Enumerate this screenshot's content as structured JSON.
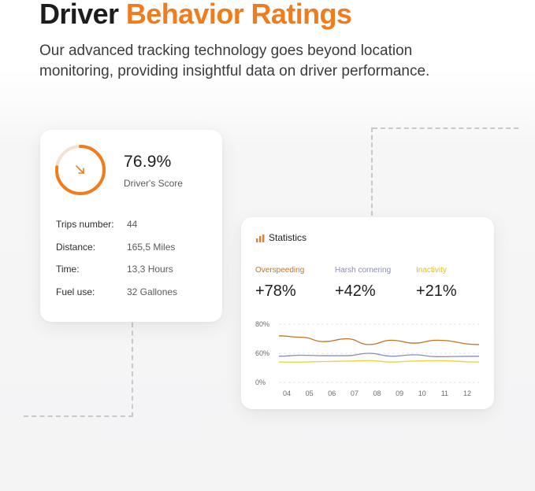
{
  "heading": {
    "part1": "Driver",
    "part2": "Behavior Ratings"
  },
  "subtitle": "Our advanced tracking technology goes beyond location monitoring, providing insightful data on driver performance.",
  "colors": {
    "accent": "#f07c1d",
    "overspeeding": "#c8731f",
    "harsh": "#8a8db5",
    "inactivity": "#f1cf35"
  },
  "score_card": {
    "score": "76.9%",
    "score_label": "Driver's Score",
    "score_fraction": 0.769,
    "icon": "arrow-down-right-icon",
    "rows": [
      {
        "label": "Trips number:",
        "value": "44"
      },
      {
        "label": "Distance:",
        "value": "165,5 Miles"
      },
      {
        "label": "Time:",
        "value": "13,3 Hours"
      },
      {
        "label": "Fuel use:",
        "value": "32 Gallones"
      }
    ]
  },
  "stats_card": {
    "title": "Statistics",
    "icon": "bar-chart-icon",
    "metrics": [
      {
        "label": "Overspeeding",
        "value": "+78%"
      },
      {
        "label": "Harsh cornering",
        "value": "+42%"
      },
      {
        "label": "Inactivity",
        "value": "+21%"
      }
    ]
  },
  "chart_data": {
    "type": "line",
    "x": [
      "04",
      "05",
      "06",
      "07",
      "08",
      "09",
      "10",
      "11",
      "12"
    ],
    "y_ticks": [
      "80%",
      "60%",
      "0%"
    ],
    "grid": true,
    "series": [
      {
        "name": "Overspeeding",
        "values": [
          72,
          71,
          68,
          70,
          66,
          69,
          67,
          69,
          66
        ]
      },
      {
        "name": "Harsh cornering",
        "values": [
          54,
          56,
          55,
          55,
          60,
          54,
          57,
          53,
          54
        ]
      },
      {
        "name": "Inactivity",
        "values": [
          42,
          42,
          43,
          44,
          45,
          42,
          44,
          45,
          42
        ]
      }
    ]
  }
}
